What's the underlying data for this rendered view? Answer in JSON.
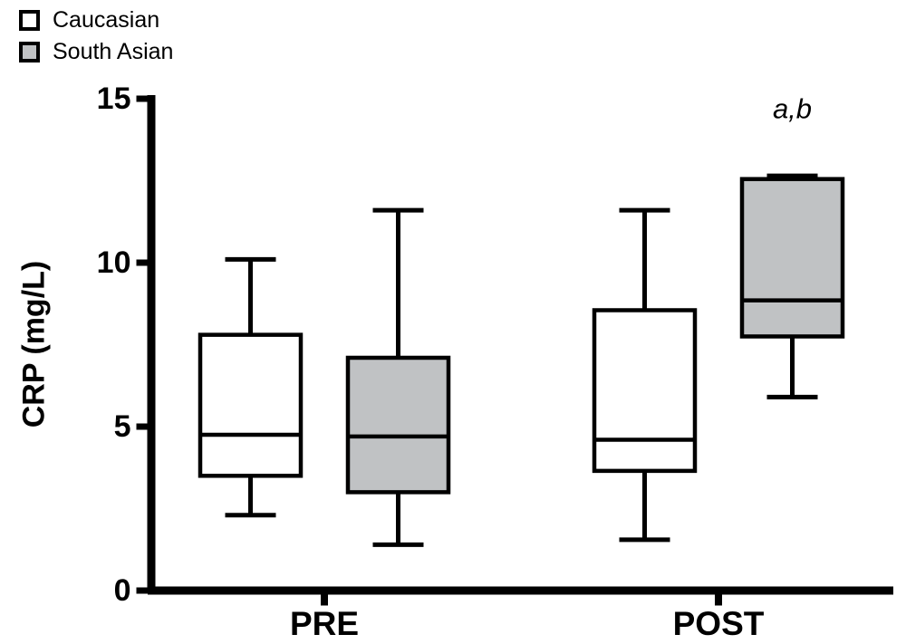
{
  "chart_data": {
    "type": "box",
    "title": "",
    "xlabel": "",
    "ylabel": "CRP (mg/L)",
    "ylim": [
      0,
      15
    ],
    "yticks": [
      0,
      5,
      10,
      15
    ],
    "categories": [
      "PRE",
      "POST"
    ],
    "grid": false,
    "legend_position": "top-left",
    "axis_color": "#000000",
    "background_color": "#ffffff",
    "series": [
      {
        "name": "Caucasian",
        "fill": "#ffffff",
        "stroke": "#000000",
        "boxes": [
          {
            "category": "PRE",
            "whisker_low": 2.3,
            "q1": 3.5,
            "median": 4.75,
            "q3": 7.8,
            "whisker_high": 10.1
          },
          {
            "category": "POST",
            "whisker_low": 1.55,
            "q1": 3.65,
            "median": 4.6,
            "q3": 8.55,
            "whisker_high": 11.6
          }
        ]
      },
      {
        "name": "South Asian",
        "fill": "#c0c2c4",
        "stroke": "#000000",
        "boxes": [
          {
            "category": "PRE",
            "whisker_low": 1.4,
            "q1": 3.0,
            "median": 4.7,
            "q3": 7.1,
            "whisker_high": 11.6
          },
          {
            "category": "POST",
            "whisker_low": 5.9,
            "q1": 7.75,
            "median": 8.85,
            "q3": 12.55,
            "whisker_high": 12.65
          }
        ]
      }
    ],
    "annotations": [
      {
        "text": "a,b",
        "category": "POST",
        "series": "South Asian",
        "value": 14.4,
        "style": "italic"
      }
    ]
  },
  "legend": {
    "items": [
      {
        "label": "Caucasian"
      },
      {
        "label": "South Asian"
      }
    ]
  }
}
